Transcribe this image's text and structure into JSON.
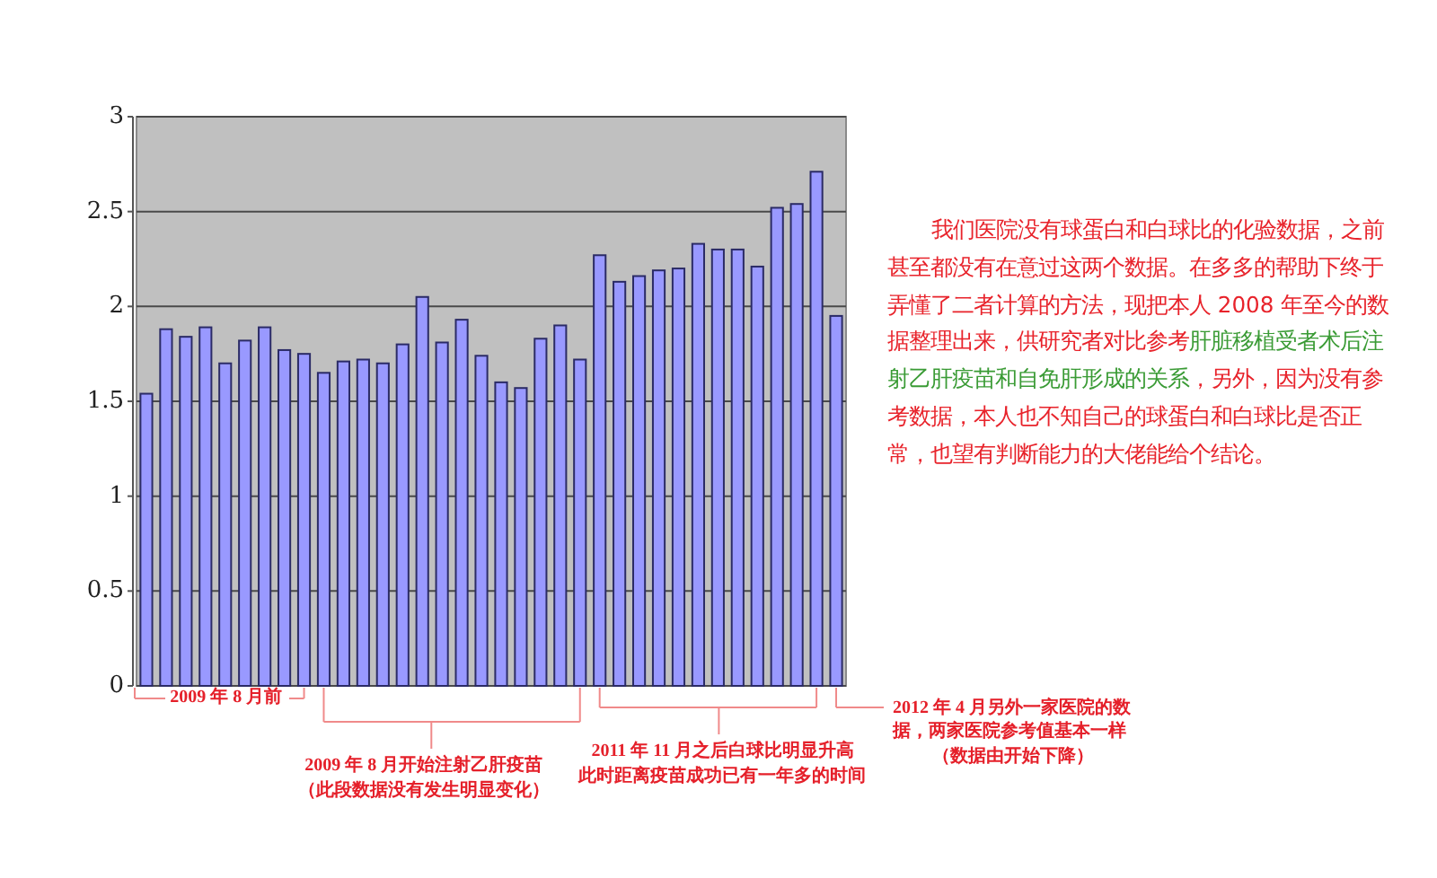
{
  "chart_data": {
    "type": "bar",
    "categories": [
      null,
      null,
      null,
      null,
      null,
      null,
      null,
      null,
      null,
      null,
      null,
      null,
      null,
      null,
      null,
      null,
      null,
      null,
      null,
      null,
      null,
      null,
      null,
      null,
      null,
      null,
      null,
      null,
      null,
      null,
      null,
      null,
      null,
      null,
      null,
      null
    ],
    "values": [
      1.54,
      1.88,
      1.84,
      1.89,
      1.7,
      1.82,
      1.89,
      1.77,
      1.75,
      1.65,
      1.71,
      1.72,
      1.7,
      1.8,
      2.05,
      1.81,
      1.93,
      1.74,
      1.6,
      1.57,
      1.83,
      1.9,
      1.72,
      2.27,
      2.13,
      2.16,
      2.19,
      2.2,
      2.33,
      2.3,
      2.3,
      2.21,
      2.52,
      2.54,
      2.71,
      1.95
    ],
    "color": "#9999ff",
    "ylim": [
      0,
      3
    ],
    "yticks": [
      0,
      0.5,
      1,
      1.5,
      2,
      2.5,
      3
    ],
    "grid": "y",
    "annotations": [
      "2009 年 8 月前",
      "2009 年 8 月开始注射乙肝疫苗",
      "（此段数据没有发生明显变化）",
      "2011 年 11 月之后白球比明显升高",
      "此时距离疫苗成功已有一年多的时间",
      "2012 年 4 月另外一家医院的数据，两家医院参考值基本一样",
      "（数据由开始下降）",
      "我们医院没有球蛋白和白球比的化验数据，之前甚至都没有在意过这两个数据。在多多的帮助下终于弄懂了二者计算的方法，现把本人 2008 年至今的数据整理出来，供研究者对比参考",
      "肝脏移植受者术后注射乙肝疫苗和自免肝形成的关系",
      "，另外，因为没有参考数据，本人也不知自己的球蛋白和白球比是否正常，也望有判断能力的大佬能给个结论。"
    ]
  }
}
